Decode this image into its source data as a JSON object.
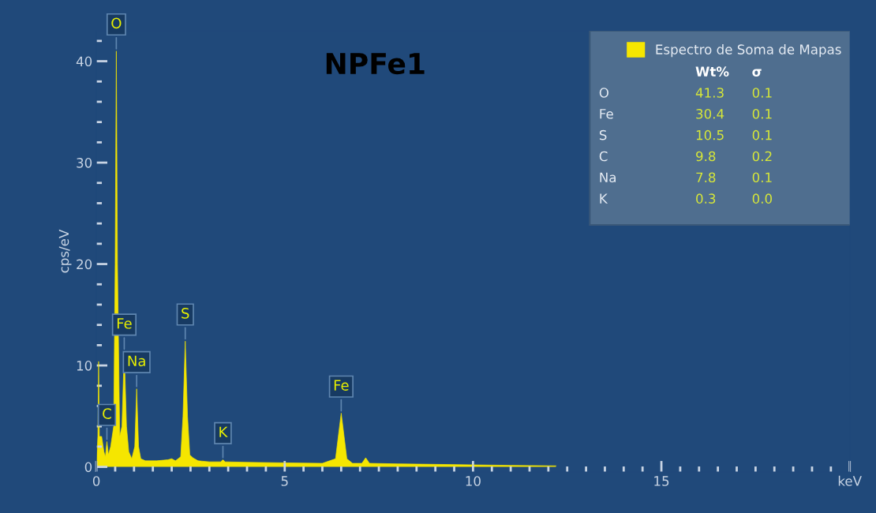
{
  "chart_data": {
    "type": "area",
    "title": "NPFe1",
    "ylabel": "cps/eV",
    "xlim": [
      0,
      20
    ],
    "ylim": [
      -0.5,
      43
    ],
    "xticks": [
      0,
      5,
      10,
      15,
      {
        "value": 20,
        "label": "keV"
      }
    ],
    "yticks": [
      0,
      10,
      20,
      30,
      40
    ],
    "grid": false,
    "legend": "top right",
    "series": [
      {
        "name": "Espectro de Soma de Mapas",
        "color": "#f5e600",
        "x": [
          0.0,
          0.04,
          0.06,
          0.08,
          0.14,
          0.2,
          0.24,
          0.28,
          0.32,
          0.38,
          0.46,
          0.5,
          0.53,
          0.56,
          0.62,
          0.68,
          0.74,
          0.8,
          0.86,
          0.94,
          1.02,
          1.07,
          1.12,
          1.18,
          1.3,
          1.6,
          1.9,
          2.0,
          2.1,
          2.24,
          2.3,
          2.36,
          2.42,
          2.48,
          2.56,
          2.7,
          3.0,
          3.3,
          3.36,
          3.42,
          4.0,
          5.0,
          6.0,
          6.35,
          6.5,
          6.65,
          6.8,
          7.05,
          7.15,
          7.25,
          8.0,
          9.0,
          10.0,
          11.0,
          12.2
        ],
        "values": [
          0,
          3,
          10.4,
          3,
          3,
          1.5,
          1,
          2.5,
          1.2,
          2,
          4,
          20,
          41,
          20,
          3,
          4,
          11.4,
          4,
          1.5,
          0.8,
          2,
          7.7,
          2,
          0.8,
          0.6,
          0.6,
          0.7,
          0.8,
          0.6,
          1,
          5,
          12.4,
          5,
          1.2,
          0.9,
          0.6,
          0.5,
          0.5,
          0.7,
          0.5,
          0.45,
          0.4,
          0.35,
          0.8,
          5.3,
          0.8,
          0.35,
          0.35,
          0.9,
          0.35,
          0.3,
          0.25,
          0.2,
          0.15,
          0.1
        ]
      }
    ],
    "annotations": [
      {
        "text": "O",
        "x": 0.53,
        "y": 41
      },
      {
        "text": "Fe",
        "x": 0.74,
        "y": 11.4
      },
      {
        "text": "Na",
        "x": 1.07,
        "y": 7.7
      },
      {
        "text": "C",
        "x": 0.28,
        "y": 2.5
      },
      {
        "text": "S",
        "x": 2.36,
        "y": 12.4
      },
      {
        "text": "K",
        "x": 3.36,
        "y": 0.7
      },
      {
        "text": "Fe",
        "x": 6.5,
        "y": 5.3
      },
      "Wt%",
      "σ",
      "O",
      "41.3",
      "0.1",
      "Fe",
      "30.4",
      "0.1",
      "S",
      "10.5",
      "0.1",
      "C",
      "9.8",
      "0.2",
      "Na",
      "7.8",
      "0.1",
      "K",
      "0.3",
      "0.0"
    ]
  }
}
